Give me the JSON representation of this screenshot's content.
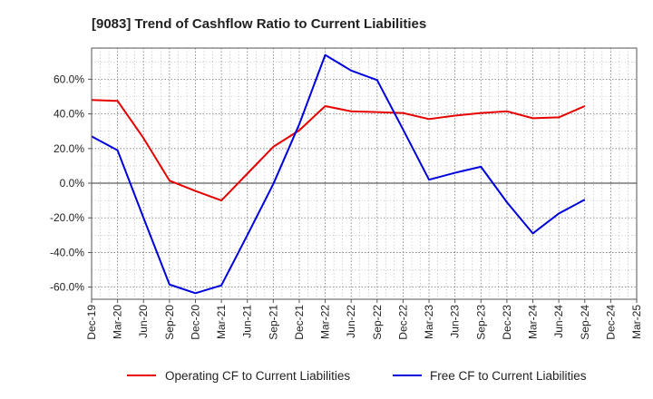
{
  "chart_data": {
    "type": "line",
    "title": "[9083]  Trend of Cashflow Ratio to Current Liabilities",
    "xlabel": "",
    "ylabel": "",
    "categories": [
      "Dec-19",
      "Mar-20",
      "Jun-20",
      "Sep-20",
      "Dec-20",
      "Mar-21",
      "Jun-21",
      "Sep-21",
      "Dec-21",
      "Mar-22",
      "Jun-22",
      "Sep-22",
      "Dec-22",
      "Mar-23",
      "Jun-23",
      "Sep-23",
      "Dec-23",
      "Mar-24",
      "Jun-24",
      "Sep-24",
      "Dec-24",
      "Mar-25"
    ],
    "ylim": [
      -67,
      78
    ],
    "yticks": [
      -60,
      -40,
      -20,
      0,
      20,
      40,
      60
    ],
    "ytick_labels": [
      "-60.0%",
      "-40.0%",
      "-20.0%",
      "0.0%",
      "20.0%",
      "40.0%",
      "60.0%"
    ],
    "grid": true,
    "legend_position": "bottom",
    "series": [
      {
        "name": "Operating CF to Current Liabilities",
        "color": "#e60000",
        "values": [
          48,
          47.5,
          26,
          1.5,
          -4.5,
          -10,
          5.5,
          21,
          30.5,
          44.5,
          41.5,
          41,
          40.5,
          37,
          39,
          40.5,
          41.5,
          37.5,
          38,
          44.5,
          null,
          null
        ]
      },
      {
        "name": "Free CF to Current Liabilities",
        "color": "#0000dd",
        "values": [
          27,
          19,
          -20,
          -58.5,
          -63.5,
          -59,
          -30,
          -0.5,
          34,
          74,
          65,
          59.5,
          31,
          2,
          6,
          9.5,
          -11,
          -29,
          -17.5,
          -9.5,
          null,
          null
        ]
      }
    ]
  }
}
